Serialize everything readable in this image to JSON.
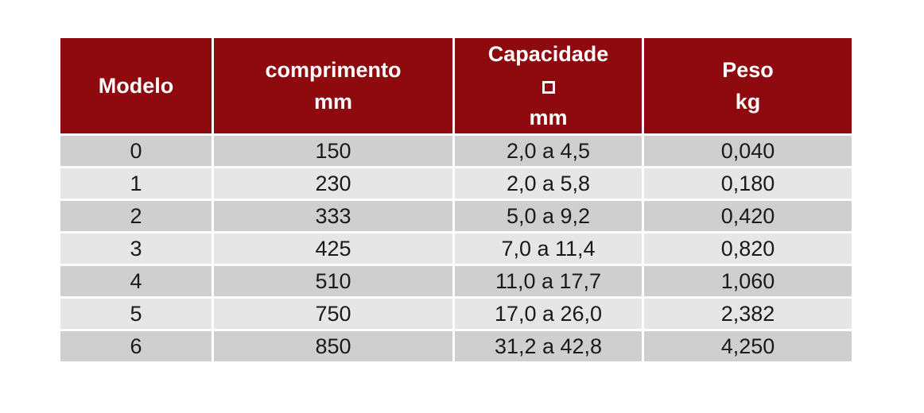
{
  "colors": {
    "header_bg": "#8e0a0e",
    "header_text": "#ffffff",
    "row_dark": "#cfcfcf",
    "row_light": "#e6e6e6"
  },
  "header": {
    "modelo": "Modelo",
    "comprimento": {
      "line1": "comprimento",
      "line2": "mm"
    },
    "capacidade": {
      "line1": "Capacidade",
      "icon": "square-section-icon",
      "line3": "mm"
    },
    "peso": {
      "line1": "Peso",
      "line2": "kg"
    }
  },
  "rows": [
    {
      "modelo": "0",
      "comprimento": "150",
      "capacidade": "2,0 a 4,5",
      "peso": "0,040"
    },
    {
      "modelo": "1",
      "comprimento": "230",
      "capacidade": "2,0 a 5,8",
      "peso": "0,180"
    },
    {
      "modelo": "2",
      "comprimento": "333",
      "capacidade": "5,0 a 9,2",
      "peso": "0,420"
    },
    {
      "modelo": "3",
      "comprimento": "425",
      "capacidade": "7,0 a 11,4",
      "peso": "0,820"
    },
    {
      "modelo": "4",
      "comprimento": "510",
      "capacidade": "11,0 a 17,7",
      "peso": "1,060"
    },
    {
      "modelo": "5",
      "comprimento": "750",
      "capacidade": "17,0 a 26,0",
      "peso": "2,382"
    },
    {
      "modelo": "6",
      "comprimento": "850",
      "capacidade": "31,2 a 42,8",
      "peso": "4,250"
    }
  ]
}
